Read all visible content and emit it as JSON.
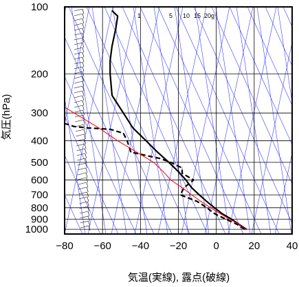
{
  "chart_data": {
    "type": "line",
    "title": "",
    "xlabel": "気温(実線), 露点(破線)",
    "ylabel": "気圧(hPa)",
    "x_range": [
      -80,
      40
    ],
    "y_range": [
      100,
      1050
    ],
    "y_scale": "log-reversed",
    "x_ticks": [
      -80,
      -60,
      -40,
      -20,
      0,
      20,
      40
    ],
    "y_ticks": [
      100,
      200,
      300,
      400,
      500,
      600,
      700,
      800,
      900,
      1000
    ],
    "mixing_ratio_labels": [
      "1",
      "5",
      "10",
      "15",
      "20g"
    ],
    "colors": {
      "temperature": "#000000",
      "dewpoint": "#000000",
      "parcel": "#ff0000",
      "reference_lines": "#3a3aff",
      "grid": "#000000"
    },
    "series": [
      {
        "key": "temperature",
        "style": "solid",
        "points": [
          [
            16,
            1000
          ],
          [
            12,
            950
          ],
          [
            8,
            900
          ],
          [
            3,
            850
          ],
          [
            -1,
            800
          ],
          [
            -5,
            750
          ],
          [
            -9,
            700
          ],
          [
            -13,
            650
          ],
          [
            -16,
            600
          ],
          [
            -20,
            550
          ],
          [
            -25,
            500
          ],
          [
            -31,
            450
          ],
          [
            -37,
            400
          ],
          [
            -44,
            350
          ],
          [
            -49,
            300
          ],
          [
            -55,
            250
          ],
          [
            -56,
            200
          ],
          [
            -56,
            175
          ],
          [
            -55,
            150
          ],
          [
            -53,
            125
          ],
          [
            -52,
            110
          ],
          [
            -55,
            104
          ]
        ]
      },
      {
        "key": "dewpoint",
        "style": "dashed",
        "points": [
          [
            15,
            1000
          ],
          [
            11,
            950
          ],
          [
            5,
            900
          ],
          [
            -1,
            850
          ],
          [
            -5,
            800
          ],
          [
            -10,
            750
          ],
          [
            -19,
            700
          ],
          [
            -17,
            650
          ],
          [
            -12,
            600
          ],
          [
            -18,
            560
          ],
          [
            -18,
            530
          ],
          [
            -24,
            500
          ],
          [
            -30,
            480
          ],
          [
            -45,
            450
          ],
          [
            -47,
            400
          ],
          [
            -49,
            370
          ],
          [
            -56,
            355
          ],
          [
            -68,
            350
          ],
          [
            -75,
            345
          ],
          [
            -82,
            330
          ]
        ]
      },
      {
        "key": "parcel",
        "style": "solid",
        "points": [
          [
            16,
            1000
          ],
          [
            12,
            950
          ],
          [
            7,
            900
          ],
          [
            2,
            850
          ],
          [
            -3,
            800
          ],
          [
            -8,
            750
          ],
          [
            -13,
            700
          ],
          [
            -18,
            650
          ],
          [
            -24,
            600
          ],
          [
            -28,
            550
          ],
          [
            -33,
            500
          ],
          [
            -42,
            450
          ],
          [
            -52,
            400
          ],
          [
            -62,
            350
          ],
          [
            -75,
            300
          ],
          [
            -90,
            250
          ]
        ]
      }
    ]
  }
}
